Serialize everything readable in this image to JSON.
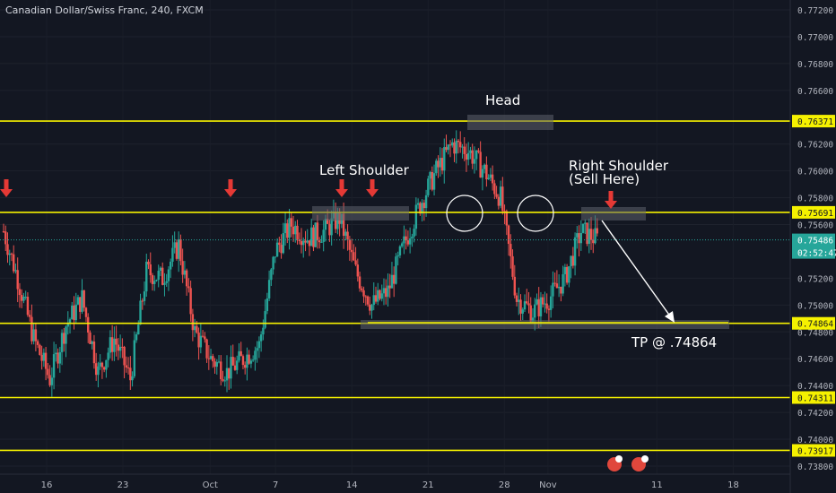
{
  "chart_data": {
    "type": "candlestick",
    "title": "Canadian Dollar/Swiss Franc, 240, FXCM",
    "y_axis": {
      "range": [
        0.738,
        0.773
      ],
      "ticks": [
        0.772,
        0.77,
        0.768,
        0.766,
        0.762,
        0.76,
        0.758,
        0.756,
        0.752,
        0.75,
        0.748,
        0.746,
        0.744,
        0.742,
        0.74,
        0.738
      ],
      "tick_labels": [
        "0.77200",
        "0.77000",
        "0.76800",
        "0.76600",
        "0.76200",
        "0.76000",
        "0.75800",
        "0.75600",
        "0.75200",
        "0.75000",
        "0.74800",
        "0.74600",
        "0.74400",
        "0.74200",
        "0.74000",
        "0.73800"
      ]
    },
    "x_axis": {
      "ticks": [
        {
          "label": "16",
          "day": 0
        },
        {
          "label": "23",
          "day": 7
        },
        {
          "label": "Oct",
          "day": 15
        },
        {
          "label": "7",
          "day": 21
        },
        {
          "label": "14",
          "day": 28
        },
        {
          "label": "21",
          "day": 35
        },
        {
          "label": "28",
          "day": 42
        },
        {
          "label": "Nov",
          "day": 46
        },
        {
          "label": "11",
          "day": 56
        },
        {
          "label": "18",
          "day": 63
        }
      ]
    },
    "levels": [
      {
        "price": 0.76371,
        "label": "0.76371"
      },
      {
        "price": 0.75691,
        "label": "0.75691"
      },
      {
        "price": 0.74864,
        "label": "0.74864"
      },
      {
        "price": 0.74311,
        "label": "0.74311"
      },
      {
        "price": 0.73917,
        "label": "0.73917"
      }
    ],
    "current_price": {
      "price": 0.75486,
      "label": "0.75486",
      "countdown": "02:52:47"
    },
    "annotations": {
      "head": "Head",
      "left_shoulder": "Left Shoulder",
      "right_shoulder_1": "Right Shoulder",
      "right_shoulder_2": "(Sell Here)",
      "take_profit": "TP @ .74864"
    },
    "path_points": [
      [
        0.7555,
        0.756
      ],
      [
        0.75,
        0.752
      ],
      [
        0.7495,
        0.7475
      ],
      [
        0.746,
        0.7445
      ],
      [
        0.7505,
        0.7485
      ],
      [
        0.747,
        0.7505
      ],
      [
        0.746,
        0.745
      ],
      [
        0.744,
        0.7475
      ],
      [
        0.743,
        0.7445
      ],
      [
        0.75,
        0.7525
      ],
      [
        0.753,
        0.752
      ],
      [
        0.756,
        0.7545
      ],
      [
        0.7505,
        0.748
      ],
      [
        0.749,
        0.746
      ],
      [
        0.747,
        0.745
      ],
      [
        0.744,
        0.746
      ],
      [
        0.748,
        0.747
      ],
      [
        0.7505,
        0.754
      ],
      [
        0.7535,
        0.756
      ],
      [
        0.757,
        0.755
      ],
      [
        0.7525,
        0.7555
      ],
      [
        0.7545,
        0.7565
      ],
      [
        0.754,
        0.7525
      ],
      [
        0.751,
        0.75
      ],
      [
        0.749,
        0.751
      ],
      [
        0.7525,
        0.7545
      ],
      [
        0.7555,
        0.7575
      ],
      [
        0.758,
        0.76
      ],
      [
        0.7615,
        0.762
      ],
      [
        0.7635,
        0.7615
      ],
      [
        0.762,
        0.76
      ],
      [
        0.759,
        0.758
      ],
      [
        0.752,
        0.7505
      ],
      [
        0.75,
        0.7495
      ],
      [
        0.7495,
        0.7505
      ],
      [
        0.751,
        0.752
      ],
      [
        0.753,
        0.7555
      ],
      [
        0.7548,
        0.7549
      ]
    ]
  }
}
